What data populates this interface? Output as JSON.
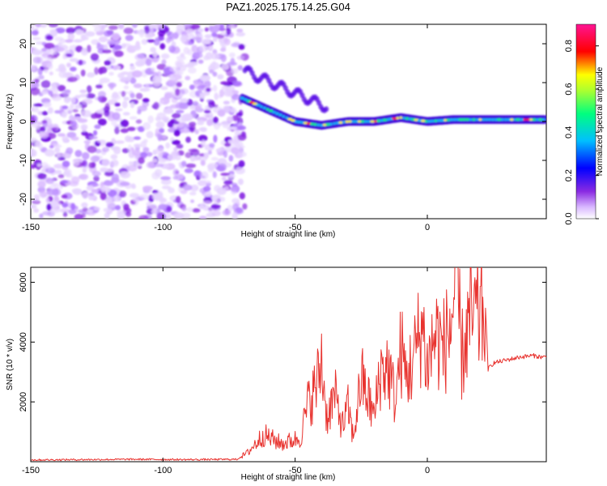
{
  "title": "PAZ1.2025.175.14.25.G04",
  "colors": {
    "snr_line": "#e8332f",
    "colormap": [
      "#ffffff",
      "#d9b8ff",
      "#8a2be2",
      "#0000ff",
      "#00bfff",
      "#00ff7f",
      "#ffff00",
      "#ff0000",
      "#ff1493"
    ]
  },
  "chart_data": [
    {
      "type": "heatmap",
      "xlabel": "Height of straight line (km)",
      "ylabel": "Frequency (Hz)",
      "xlim": [
        -150,
        45
      ],
      "ylim": [
        -25,
        25
      ],
      "x_ticks": [
        -150,
        -100,
        -50,
        0
      ],
      "y_ticks": [
        -20,
        -10,
        0,
        10,
        20
      ],
      "noise_region_x": [
        -150,
        -69
      ],
      "signal_ridge": {
        "x": [
          -70,
          -60,
          -50,
          -40,
          -30,
          -20,
          -10,
          0,
          10,
          20,
          30,
          45
        ],
        "freq": [
          6,
          3,
          0,
          -1,
          0,
          0,
          1,
          0,
          0.5,
          0.5,
          0.5,
          0.5
        ]
      },
      "colorbar": {
        "label": "Normalized spectral amplitude",
        "range": [
          0,
          0.9
        ],
        "ticks": [
          0.0,
          0.2,
          0.4,
          0.6,
          0.8
        ]
      }
    },
    {
      "type": "line",
      "xlabel": "Height of straight line (km)",
      "ylabel": "SNR (10 * v/v)",
      "xlim": [
        -150,
        45
      ],
      "ylim": [
        0,
        6500
      ],
      "x_ticks": [
        -150,
        -100,
        -50,
        0
      ],
      "y_ticks": [
        2000,
        4000,
        6000
      ],
      "series": [
        {
          "x": [
            -150,
            -130,
            -110,
            -90,
            -72,
            -68,
            -62,
            -55,
            -48,
            -45,
            -42,
            -40,
            -38,
            -35,
            -32,
            -30,
            -28,
            -25,
            -22,
            -20,
            -18,
            -15,
            -12,
            -10,
            -8,
            -5,
            -2,
            0,
            3,
            6,
            9,
            11,
            13,
            16,
            20,
            22,
            23,
            25,
            30,
            35,
            40,
            43,
            45
          ],
          "y": [
            60,
            70,
            80,
            70,
            80,
            300,
            900,
            600,
            800,
            2000,
            2500,
            3400,
            1500,
            2200,
            1200,
            1800,
            800,
            2800,
            2000,
            1500,
            3000,
            3200,
            2000,
            3800,
            2800,
            3500,
            4600,
            3200,
            4300,
            3800,
            4600,
            6300,
            3500,
            4700,
            4900,
            5100,
            3100,
            3300,
            3400,
            3500,
            3550,
            3500,
            3500
          ]
        }
      ]
    }
  ]
}
